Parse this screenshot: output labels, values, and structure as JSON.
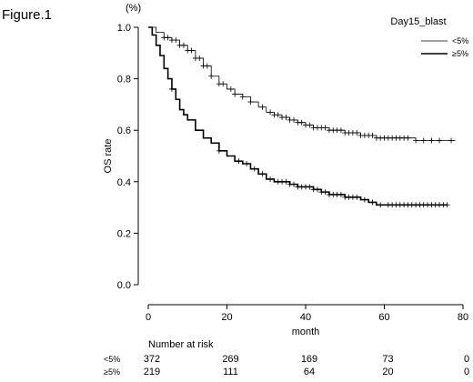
{
  "figure_label": "Figure.1",
  "chart_data": {
    "type": "line",
    "chart_subtype": "kaplan-meier",
    "title": "",
    "xlabel": "month",
    "ylabel": "OS rate",
    "y_unit": "(%)",
    "xlim": [
      0,
      80
    ],
    "ylim": [
      0,
      1.0
    ],
    "x_ticks": [
      0,
      20,
      40,
      60,
      80
    ],
    "y_ticks": [
      0.0,
      0.2,
      0.4,
      0.6,
      0.8,
      1.0
    ],
    "grid": false,
    "legend": {
      "title": "Day15_blast",
      "position": "top-right"
    },
    "series": [
      {
        "name": "<5%",
        "line_weight": "thin",
        "x": [
          0,
          2,
          4,
          6,
          8,
          10,
          12,
          14,
          16,
          18,
          20,
          22,
          24,
          26,
          28,
          30,
          32,
          34,
          36,
          38,
          40,
          42,
          44,
          46,
          48,
          50,
          52,
          54,
          56,
          58,
          60,
          62,
          64,
          66,
          68,
          70,
          72,
          74,
          76,
          78
        ],
        "y": [
          1.0,
          0.98,
          0.96,
          0.95,
          0.93,
          0.91,
          0.88,
          0.85,
          0.81,
          0.78,
          0.76,
          0.74,
          0.73,
          0.71,
          0.69,
          0.67,
          0.66,
          0.65,
          0.64,
          0.63,
          0.62,
          0.61,
          0.61,
          0.6,
          0.6,
          0.59,
          0.59,
          0.58,
          0.58,
          0.57,
          0.57,
          0.57,
          0.57,
          0.57,
          0.56,
          0.56,
          0.56,
          0.56,
          0.56,
          0.56
        ],
        "censor_x": [
          4,
          5,
          6,
          7,
          8,
          9,
          10,
          11,
          12,
          13,
          14,
          15,
          16,
          18,
          19,
          21,
          22,
          24,
          26,
          29,
          31,
          32,
          33,
          34,
          35,
          36,
          37,
          38,
          39,
          40,
          41,
          42,
          43,
          44,
          45,
          46,
          47,
          48,
          49,
          50,
          51,
          52,
          53,
          54,
          55,
          56,
          57,
          58,
          59,
          60,
          61,
          62,
          63,
          64,
          65,
          66,
          68,
          70,
          72,
          74,
          77
        ]
      },
      {
        "name": "≥5%",
        "line_weight": "thick",
        "x": [
          0,
          1,
          2,
          3,
          4,
          5,
          6,
          7,
          8,
          9,
          10,
          12,
          14,
          16,
          18,
          20,
          22,
          24,
          26,
          28,
          30,
          32,
          34,
          36,
          38,
          40,
          42,
          44,
          46,
          48,
          50,
          52,
          54,
          56,
          58,
          60,
          62,
          64,
          66,
          68,
          70,
          72,
          74,
          76
        ],
        "y": [
          1.0,
          0.97,
          0.93,
          0.89,
          0.84,
          0.8,
          0.76,
          0.72,
          0.68,
          0.66,
          0.64,
          0.6,
          0.57,
          0.55,
          0.52,
          0.5,
          0.48,
          0.47,
          0.45,
          0.43,
          0.41,
          0.4,
          0.4,
          0.39,
          0.38,
          0.38,
          0.37,
          0.36,
          0.35,
          0.35,
          0.34,
          0.34,
          0.33,
          0.32,
          0.31,
          0.31,
          0.31,
          0.31,
          0.31,
          0.31,
          0.31,
          0.31,
          0.31,
          0.31
        ],
        "censor_x": [
          6,
          18,
          23,
          25,
          27,
          29,
          31,
          33,
          34,
          35,
          36,
          37,
          38,
          39,
          40,
          41,
          42,
          43,
          44,
          45,
          46,
          47,
          48,
          49,
          50,
          51,
          52,
          53,
          55,
          57,
          59,
          61,
          62,
          63,
          64,
          65,
          66,
          67,
          68,
          69,
          70,
          71,
          72,
          73,
          74,
          75,
          76
        ]
      }
    ],
    "risk_table": {
      "title": "Number at risk",
      "times": [
        0,
        20,
        40,
        60,
        80
      ],
      "rows": [
        {
          "label": "<5%",
          "values": [
            "372",
            "269",
            "169",
            "73",
            "0"
          ]
        },
        {
          "label": "≥5%",
          "values": [
            "219",
            "111",
            "64",
            "20",
            "0"
          ]
        }
      ]
    }
  }
}
